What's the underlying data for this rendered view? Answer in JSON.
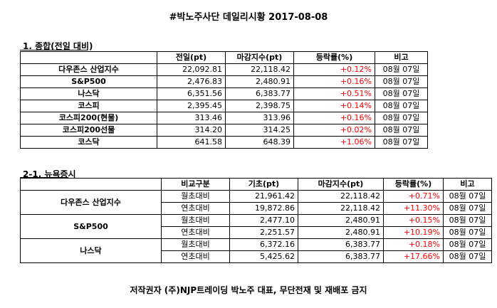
{
  "title": "#박노주사단 데일리시황 2017-08-08",
  "section1": {
    "label": "1. 종합(전일 대비)",
    "headers": [
      "",
      "전일(pt)",
      "마감지수(pt)",
      "등락률(%)",
      "비고"
    ],
    "rows": [
      {
        "name": "다우존스 산업지수",
        "prev": "22,092.81",
        "close": "22,118.42",
        "change": "+0.12%",
        "note": "08월 07일"
      },
      {
        "name": "S&P500",
        "prev": "2,476.83",
        "close": "2,480.91",
        "change": "+0.16%",
        "note": "08월 07일"
      },
      {
        "name": "나스닥",
        "prev": "6,351.56",
        "close": "6,383.77",
        "change": "+0.51%",
        "note": "08월 07일"
      },
      {
        "name": "코스피",
        "prev": "2,395.45",
        "close": "2,398.75",
        "change": "+0.14%",
        "note": "08월 07일"
      },
      {
        "name": "코스피200(현물)",
        "prev": "313.46",
        "close": "313.96",
        "change": "+0.16%",
        "note": "08월 07일"
      },
      {
        "name": "코스피200선물",
        "prev": "314.20",
        "close": "314.25",
        "change": "+0.02%",
        "note": "08월 07일"
      },
      {
        "name": "코스닥",
        "prev": "641.58",
        "close": "648.39",
        "change": "+1.06%",
        "note": "08월 07일"
      }
    ]
  },
  "section2": {
    "label": "2-1. 뉴욕증시",
    "headers": [
      "",
      "비교구분",
      "기초(pt)",
      "마감지수(pt)",
      "등락률(%)",
      "비고"
    ],
    "groups": [
      {
        "name": "다우존스 산업지수",
        "rows": [
          {
            "kind": "월초대비",
            "base": "21,961.42",
            "close": "22,118.42",
            "change": "+0.71%",
            "note": "08월 07일"
          },
          {
            "kind": "연초대비",
            "base": "19,872.86",
            "close": "22,118.42",
            "change": "+11.30%",
            "note": "08월 07일"
          }
        ]
      },
      {
        "name": "S&P500",
        "rows": [
          {
            "kind": "월초대비",
            "base": "2,477.10",
            "close": "2,480.91",
            "change": "+0.15%",
            "note": "08월 07일"
          },
          {
            "kind": "연초대비",
            "base": "2,251.57",
            "close": "2,480.91",
            "change": "+10.19%",
            "note": "08월 07일"
          }
        ]
      },
      {
        "name": "나스닥",
        "rows": [
          {
            "kind": "월초대비",
            "base": "6,372.16",
            "close": "6,383.77",
            "change": "+0.18%",
            "note": "08월 07일"
          },
          {
            "kind": "연초대비",
            "base": "5,425.62",
            "close": "6,383.77",
            "change": "+17.66%",
            "note": "08월 07일"
          }
        ]
      }
    ]
  },
  "footer": "저작권자 (주)NJP트레이딩 박노주 대표, 무단전재 및 재배포 금지",
  "colors": {
    "positive": "#ff0000",
    "text": "#000000",
    "border": "#000000"
  }
}
